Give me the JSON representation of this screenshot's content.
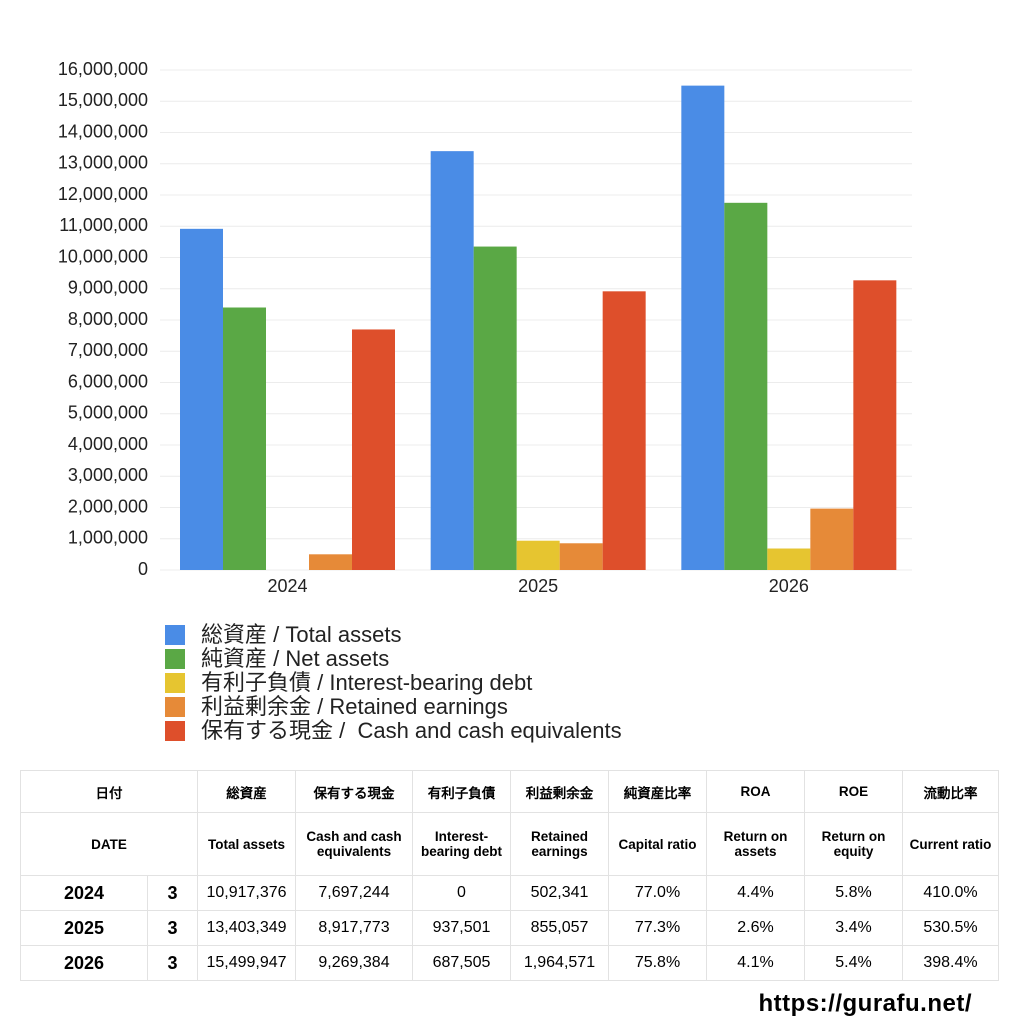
{
  "chart_data": {
    "type": "bar",
    "categories": [
      "2024",
      "2025",
      "2026"
    ],
    "series": [
      {
        "name": "総資産 / Total assets",
        "color": "#4a8ce6",
        "values": [
          10917376,
          13403349,
          15499947
        ]
      },
      {
        "name": "純資産 / Net assets",
        "color": "#5aa845",
        "values": [
          8400000,
          10350000,
          11750000
        ]
      },
      {
        "name": "有利子負債 / Interest-bearing debt",
        "color": "#e6c530",
        "values": [
          0,
          937501,
          687505
        ]
      },
      {
        "name": "利益剰余金 / Retained earnings",
        "color": "#e68a38",
        "values": [
          502341,
          855057,
          1964571
        ]
      },
      {
        "name": "保有する現金 /  Cash and cash equivalents",
        "color": "#de4f2b",
        "values": [
          7697244,
          8917773,
          9269384
        ]
      }
    ],
    "ylim": [
      0,
      16000000
    ],
    "yticks": [
      0,
      {
        "value": 1000000,
        "label": "1,000,000"
      },
      {
        "value": 2000000,
        "label": "2,000,000"
      },
      {
        "value": 3000000,
        "label": "3,000,000"
      },
      {
        "value": 4000000,
        "label": "4,000,000"
      },
      {
        "value": 5000000,
        "label": "5,000,000"
      },
      {
        "value": 6000000,
        "label": "6,000,000"
      },
      {
        "value": 7000000,
        "label": "7,000,000"
      },
      {
        "value": 8000000,
        "label": "8,000,000"
      },
      {
        "value": 9000000,
        "label": "9,000,000"
      },
      {
        "value": 10000000,
        "label": "10,000,000"
      },
      {
        "value": 11000000,
        "label": "11,000,000"
      },
      {
        "value": 12000000,
        "label": "12,000,000"
      },
      {
        "value": 13000000,
        "label": "13,000,000"
      },
      {
        "value": 14000000,
        "label": "14,000,000"
      },
      {
        "value": 15000000,
        "label": "15,000,000"
      },
      {
        "value": 16000000,
        "label": "16,000,000"
      }
    ],
    "grid": true,
    "legend": "bottom"
  },
  "table": {
    "header_ja": [
      "日付",
      "総資産",
      "保有する現金",
      "有利子負債",
      "利益剰余金",
      "純資産比率",
      "ROA",
      "ROE",
      "流動比率"
    ],
    "header_en": [
      "DATE",
      "Total assets",
      "Cash and cash equivalents",
      "Interest-bearing debt",
      "Retained earnings",
      "Capital ratio",
      "Return on assets",
      "Return on equity",
      "Current ratio"
    ],
    "rows": [
      [
        "2024",
        "3",
        "10,917,376",
        "7,697,244",
        "0",
        "502,341",
        "77.0%",
        "4.4%",
        "5.8%",
        "410.0%"
      ],
      [
        "2025",
        "3",
        "13,403,349",
        "8,917,773",
        "937,501",
        "855,057",
        "77.3%",
        "2.6%",
        "3.4%",
        "530.5%"
      ],
      [
        "2026",
        "3",
        "15,499,947",
        "9,269,384",
        "687,505",
        "1,964,571",
        "75.8%",
        "4.1%",
        "5.4%",
        "398.4%"
      ]
    ]
  },
  "footer": "https://gurafu.net/"
}
